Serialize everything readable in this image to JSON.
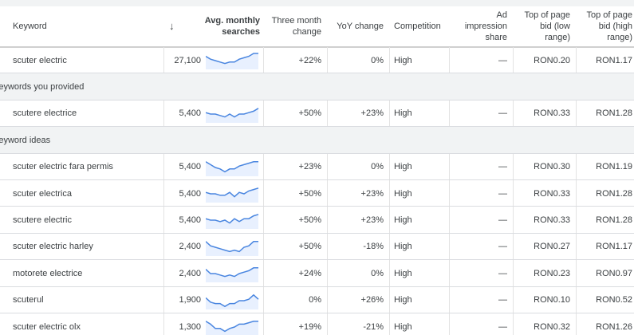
{
  "header": {
    "keyword": "Keyword",
    "sort": "↓",
    "searches": "Avg. monthly searches",
    "three_month": "Three month change",
    "yoy": "YoY change",
    "competition": "Competition",
    "ad_share": "Ad impression share",
    "bid_low": "Top of page bid (low range)",
    "bid_high": "Top of page bid (high range)"
  },
  "rows": [
    {
      "keyword": "scuter electric",
      "searches": "27,100",
      "trend": [
        8,
        6,
        5,
        4,
        3,
        4,
        4,
        6,
        7,
        8,
        10,
        10
      ],
      "three_month": "+22%",
      "yoy": "0%",
      "competition": "High",
      "ad_share": "—",
      "bid_low": "RON0.20",
      "bid_high": "RON1.17"
    },
    {
      "group": "Keywords you provided"
    },
    {
      "keyword": "scutere electrice",
      "searches": "5,400",
      "trend": [
        6,
        5,
        5,
        4,
        3,
        5,
        3,
        5,
        5,
        6,
        7,
        9
      ],
      "three_month": "+50%",
      "yoy": "+23%",
      "competition": "High",
      "ad_share": "—",
      "bid_low": "RON0.33",
      "bid_high": "RON1.28"
    },
    {
      "group": "Keyword ideas"
    },
    {
      "keyword": "scuter electric fara permis",
      "searches": "5,400",
      "trend": [
        9,
        7,
        5,
        4,
        2,
        4,
        4,
        6,
        7,
        8,
        9,
        9
      ],
      "three_month": "+23%",
      "yoy": "0%",
      "competition": "High",
      "ad_share": "—",
      "bid_low": "RON0.30",
      "bid_high": "RON1.19"
    },
    {
      "keyword": "scuter electrica",
      "searches": "5,400",
      "trend": [
        6,
        5,
        5,
        4,
        4,
        6,
        3,
        6,
        5,
        7,
        8,
        9
      ],
      "three_month": "+50%",
      "yoy": "+23%",
      "competition": "High",
      "ad_share": "—",
      "bid_low": "RON0.33",
      "bid_high": "RON1.28"
    },
    {
      "keyword": "scutere electric",
      "searches": "5,400",
      "trend": [
        6,
        5,
        5,
        4,
        5,
        3,
        6,
        4,
        6,
        6,
        8,
        9
      ],
      "three_month": "+50%",
      "yoy": "+23%",
      "competition": "High",
      "ad_share": "—",
      "bid_low": "RON0.33",
      "bid_high": "RON1.28"
    },
    {
      "keyword": "scuter electric harley",
      "searches": "2,400",
      "trend": [
        9,
        6,
        5,
        4,
        3,
        2,
        3,
        2,
        5,
        6,
        9,
        9
      ],
      "three_month": "+50%",
      "yoy": "-18%",
      "competition": "High",
      "ad_share": "—",
      "bid_low": "RON0.27",
      "bid_high": "RON1.17"
    },
    {
      "keyword": "motorete electrice",
      "searches": "2,400",
      "trend": [
        8,
        5,
        5,
        4,
        3,
        4,
        3,
        5,
        6,
        7,
        9,
        9
      ],
      "three_month": "+24%",
      "yoy": "0%",
      "competition": "High",
      "ad_share": "—",
      "bid_low": "RON0.23",
      "bid_high": "RON0.97"
    },
    {
      "keyword": "scuterul",
      "searches": "1,900",
      "trend": [
        7,
        4,
        3,
        3,
        1,
        3,
        3,
        5,
        5,
        6,
        9,
        6
      ],
      "three_month": "0%",
      "yoy": "+26%",
      "competition": "High",
      "ad_share": "—",
      "bid_low": "RON0.10",
      "bid_high": "RON0.52"
    },
    {
      "keyword": "scuter electric olx",
      "searches": "1,300",
      "trend": [
        9,
        7,
        4,
        4,
        2,
        4,
        5,
        7,
        7,
        8,
        9,
        9
      ],
      "three_month": "+19%",
      "yoy": "-21%",
      "competition": "High",
      "ad_share": "—",
      "bid_low": "RON0.32",
      "bid_high": "RON1.26"
    }
  ]
}
